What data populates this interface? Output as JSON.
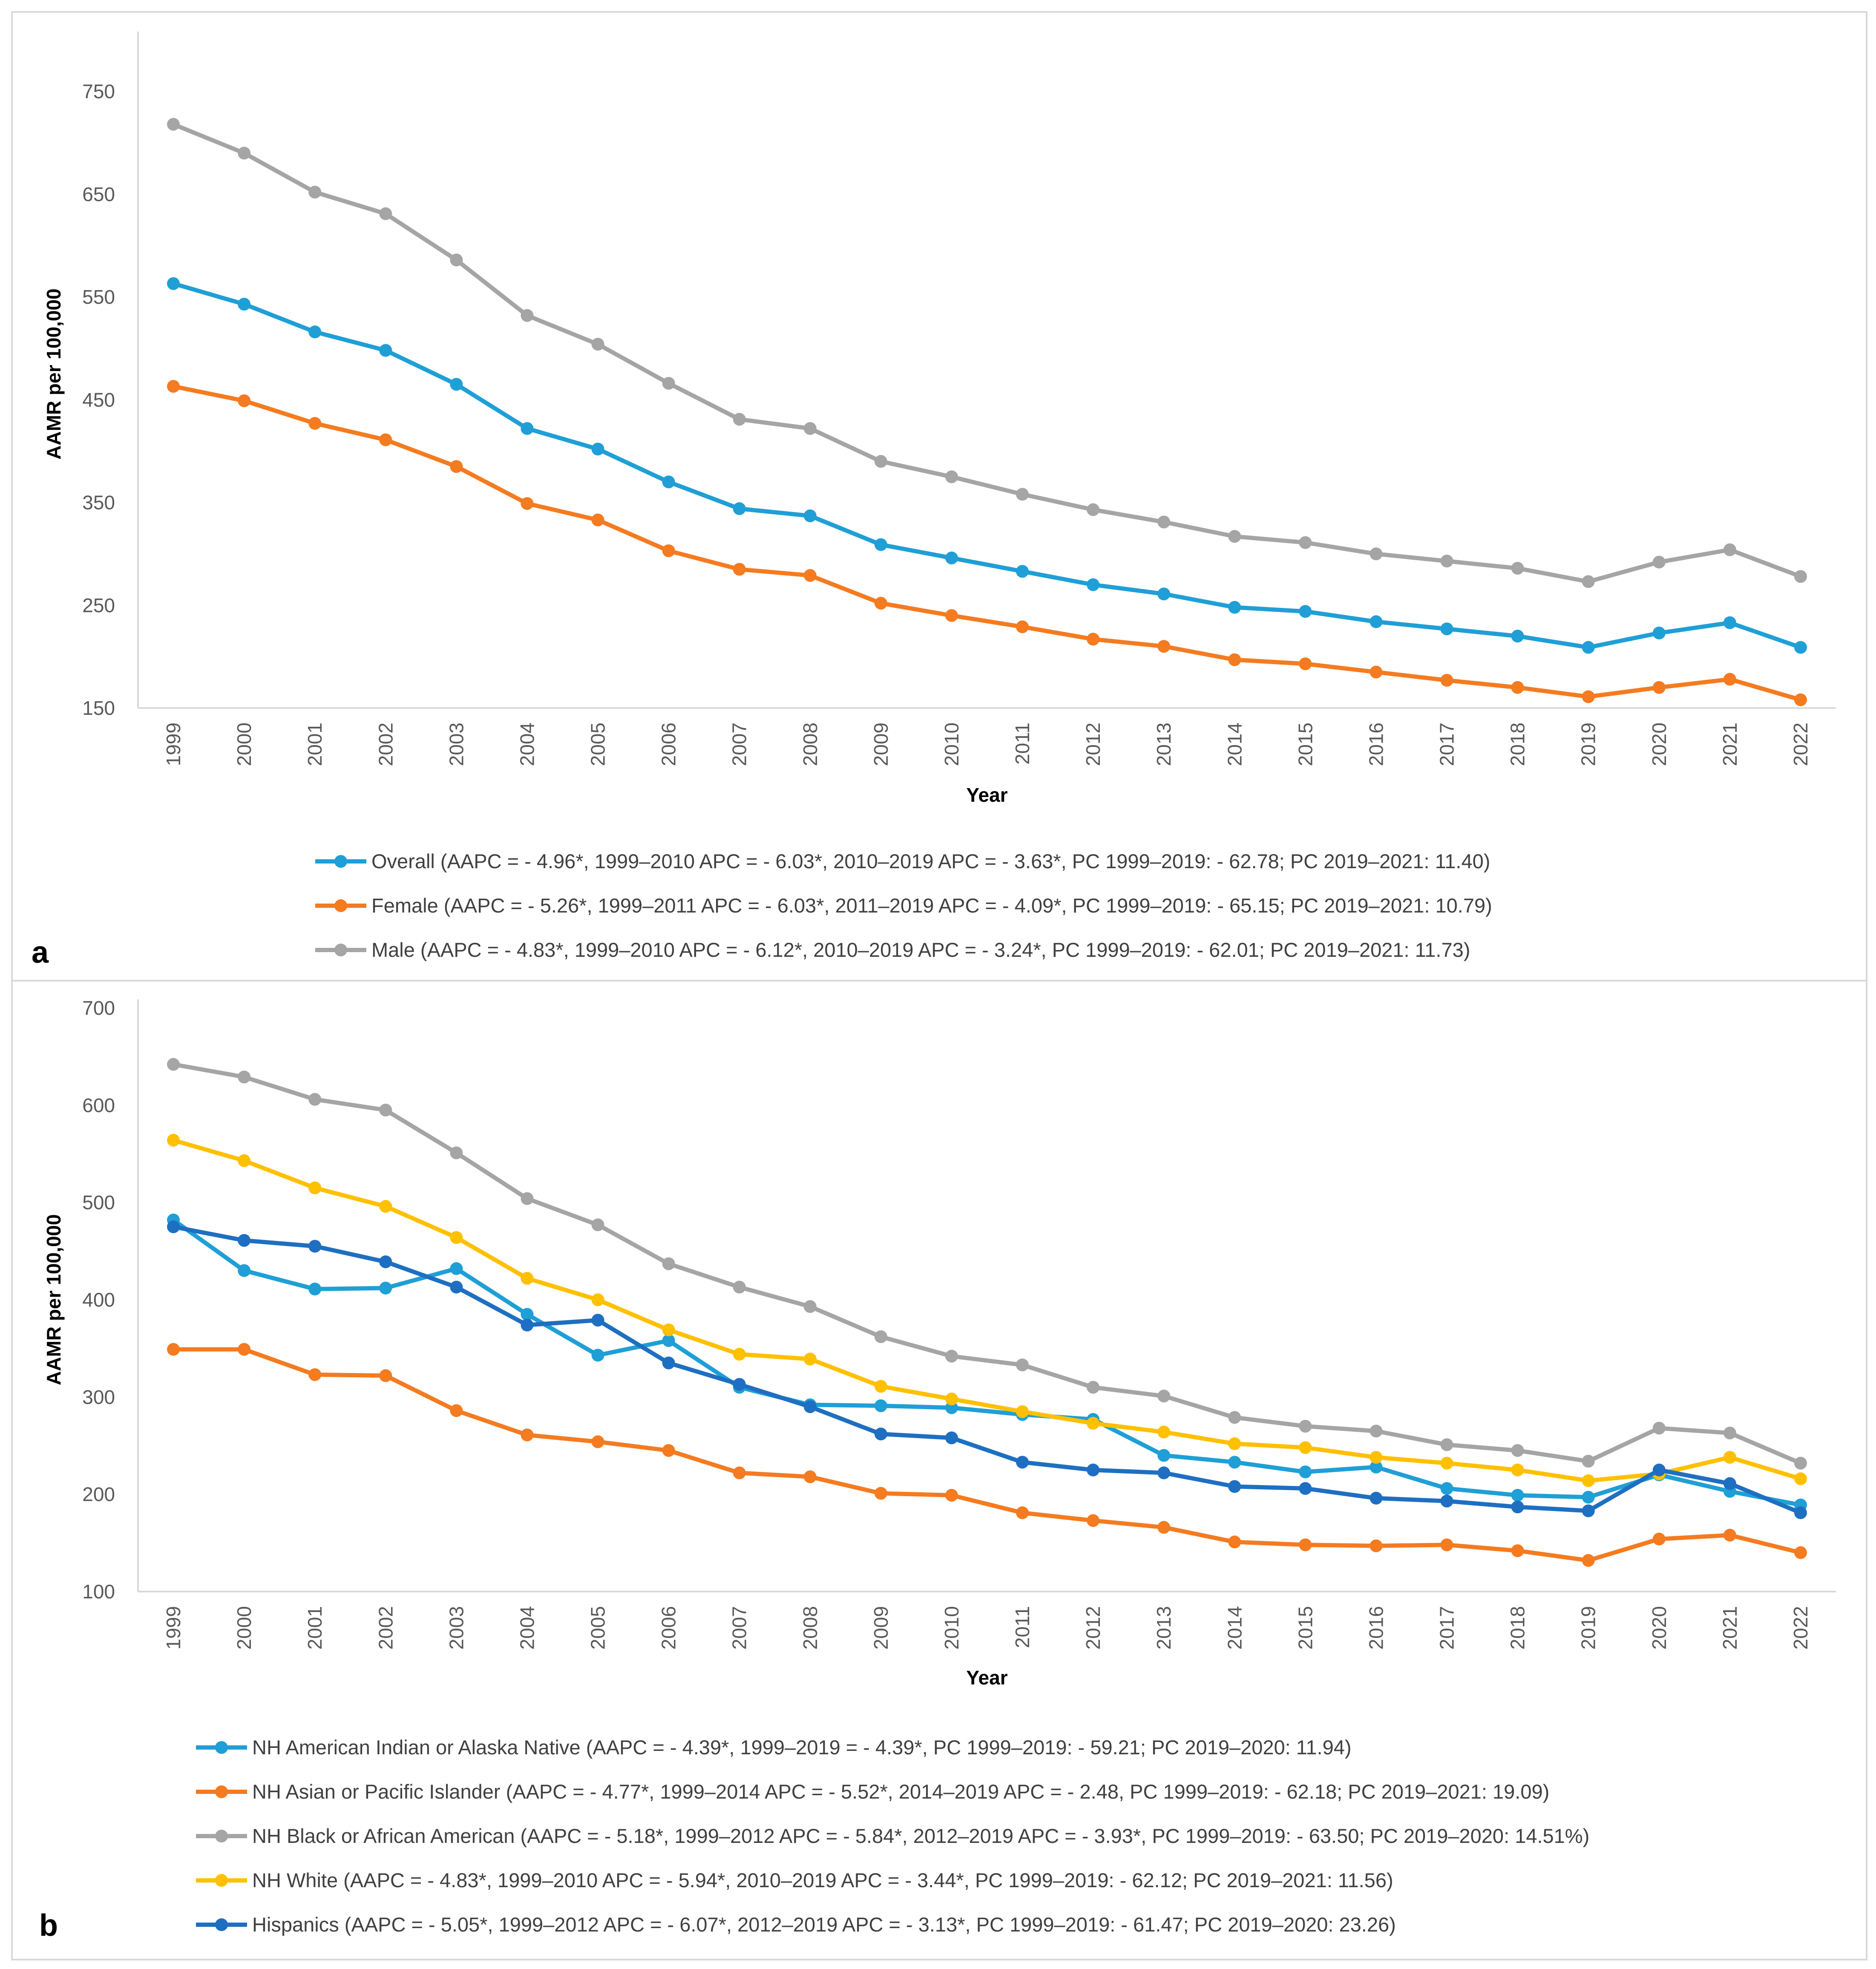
{
  "chart_data": [
    {
      "type": "line",
      "panel_label": "a",
      "xlabel": "Year",
      "ylabel": "AAMR per 100,000",
      "ylim": [
        150,
        800
      ],
      "yticks": [
        150,
        250,
        350,
        450,
        550,
        650,
        750
      ],
      "x": [
        "1999",
        "2000",
        "2001",
        "2002",
        "2003",
        "2004",
        "2005",
        "2006",
        "2007",
        "2008",
        "2009",
        "2010",
        "2011",
        "2012",
        "2013",
        "2014",
        "2015",
        "2016",
        "2017",
        "2018",
        "2019",
        "2020",
        "2021",
        "2022"
      ],
      "legend_position": "bottom",
      "series": [
        {
          "name": "Overall (AAPC = - 4.96*, 1999–2010 APC = - 6.03*, 2010–2019 APC = - 3.63*, PC 1999–2019: - 62.78; PC 2019–2021: 11.40)",
          "color": "#1F9FD6",
          "values": [
            563,
            543,
            516,
            498,
            465,
            422,
            402,
            370,
            344,
            337,
            309,
            296,
            283,
            270,
            261,
            248,
            244,
            234,
            227,
            220,
            209,
            223,
            233,
            209
          ]
        },
        {
          "name": "Female (AAPC = - 5.26*, 1999–2011 APC = - 6.03*, 2011–2019 APC = - 4.09*, PC 1999–2019: - 65.15; PC 2019–2021: 10.79)",
          "color": "#F47B20",
          "values": [
            463,
            449,
            427,
            411,
            385,
            349,
            333,
            303,
            285,
            279,
            252,
            240,
            229,
            217,
            210,
            197,
            193,
            185,
            177,
            170,
            161,
            170,
            178,
            158
          ]
        },
        {
          "name": "Male (AAPC = - 4.83*, 1999–2010 APC = - 6.12*, 2010–2019 APC = - 3.24*, PC 1999–2019: - 62.01; PC 2019–2021: 11.73)",
          "color": "#A5A5A5",
          "values": [
            718,
            690,
            652,
            631,
            586,
            532,
            504,
            466,
            431,
            422,
            390,
            375,
            358,
            343,
            331,
            317,
            311,
            300,
            293,
            286,
            273,
            292,
            304,
            278
          ]
        }
      ]
    },
    {
      "type": "line",
      "panel_label": "b",
      "xlabel": "Year",
      "ylabel": "AAMR per 100,000",
      "ylim": [
        100,
        700
      ],
      "yticks": [
        100,
        200,
        300,
        400,
        500,
        600,
        700
      ],
      "x": [
        "1999",
        "2000",
        "2001",
        "2002",
        "2003",
        "2004",
        "2005",
        "2006",
        "2007",
        "2008",
        "2009",
        "2010",
        "2011",
        "2012",
        "2013",
        "2014",
        "2015",
        "2016",
        "2017",
        "2018",
        "2019",
        "2020",
        "2021",
        "2022"
      ],
      "legend_position": "bottom",
      "series": [
        {
          "name": "NH American Indian or Alaska Native (AAPC = - 4.39*, 1999–2019 = - 4.39*, PC 1999–2019: - 59.21; PC 2019–2020: 11.94)",
          "color": "#1F9FD6",
          "values": [
            482,
            430,
            411,
            412,
            432,
            385,
            343,
            358,
            310,
            292,
            291,
            289,
            282,
            277,
            240,
            233,
            223,
            228,
            206,
            199,
            197,
            220,
            203,
            189
          ]
        },
        {
          "name": "NH Asian or Pacific Islander (AAPC = - 4.77*, 1999–2014 APC = - 5.52*, 2014–2019 APC = - 2.48, PC 1999–2019: - 62.18; PC 2019–2021: 19.09)",
          "color": "#F47B20",
          "values": [
            349,
            349,
            323,
            322,
            286,
            261,
            254,
            245,
            222,
            218,
            201,
            199,
            181,
            173,
            166,
            151,
            148,
            147,
            148,
            142,
            132,
            154,
            158,
            140
          ]
        },
        {
          "name": "NH Black or African American (AAPC = - 5.18*, 1999–2012 APC = - 5.84*, 2012–2019 APC = - 3.93*, PC 1999–2019: - 63.50; PC 2019–2020: 14.51%)",
          "color": "#A5A5A5",
          "values": [
            642,
            629,
            606,
            595,
            551,
            504,
            477,
            437,
            413,
            393,
            362,
            342,
            333,
            310,
            301,
            279,
            270,
            265,
            251,
            245,
            234,
            268,
            263,
            232
          ]
        },
        {
          "name": "NH White (AAPC = - 4.83*, 1999–2010 APC = - 5.94*, 2010–2019 APC = - 3.44*, PC 1999–2019: - 62.12; PC 2019–2021: 11.56)",
          "color": "#FFC000",
          "values": [
            564,
            543,
            515,
            496,
            464,
            422,
            400,
            369,
            344,
            339,
            311,
            298,
            285,
            273,
            264,
            252,
            248,
            238,
            232,
            225,
            214,
            221,
            238,
            216
          ]
        },
        {
          "name": "Hispanics (AAPC = - 5.05*, 1999–2012 APC = - 6.07*, 2012–2019 APC = - 3.13*, PC 1999–2019: - 61.47; PC 2019–2020: 23.26)",
          "color": "#1E6FC1",
          "values": [
            475,
            461,
            455,
            439,
            413,
            374,
            379,
            335,
            313,
            290,
            262,
            258,
            233,
            225,
            222,
            208,
            206,
            196,
            193,
            187,
            183,
            225,
            211,
            181
          ]
        }
      ]
    }
  ]
}
